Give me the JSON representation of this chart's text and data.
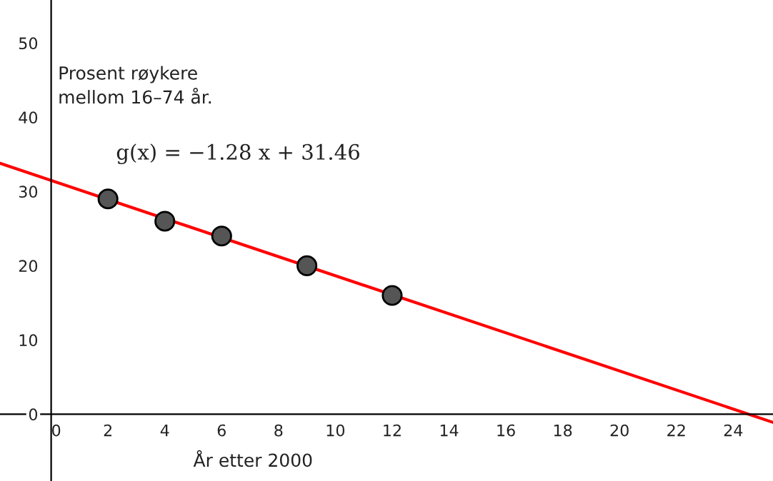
{
  "chart_data": {
    "type": "scatter",
    "xlabel": "År etter 2000",
    "ylabel": "Prosent røykere\nmellom 16–74 år.",
    "annotations": [
      "g(x) = −1.28 x + 31.46"
    ],
    "x": [
      2,
      4,
      6,
      9,
      12
    ],
    "series": [
      {
        "color": "#555555",
        "marker": "circle",
        "values": [
          29,
          26,
          24,
          20,
          16
        ]
      },
      {
        "type": "line",
        "color": "#ff0000",
        "x": [
          -1.8,
          25.4
        ],
        "values": [
          33.8,
          -1.1
        ]
      }
    ],
    "xlim": [
      -1.8,
      25.4
    ],
    "ylim": [
      -9,
      55.8
    ],
    "xticks": [
      0,
      2,
      4,
      6,
      8,
      10,
      12,
      14,
      16,
      18,
      20,
      22,
      24
    ],
    "yticks": [
      0,
      10,
      20,
      30,
      40,
      50
    ],
    "grid": false,
    "legend": false
  }
}
